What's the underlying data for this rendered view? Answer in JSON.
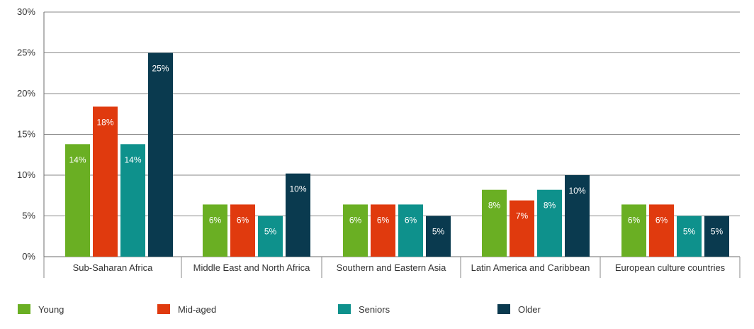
{
  "chart_data": {
    "type": "bar",
    "title": "",
    "xlabel": "",
    "ylabel": "",
    "ylim": [
      0,
      30
    ],
    "yticks": [
      "0%",
      "5%",
      "10%",
      "15%",
      "20%",
      "25%",
      "30%"
    ],
    "ytick_values": [
      0,
      5,
      10,
      15,
      20,
      25,
      30
    ],
    "grid": true,
    "legend_position": "bottom",
    "categories": [
      "Sub-Saharan Africa",
      "Middle East and North Africa",
      "Southern and Eastern Asia",
      "Latin America and Caribbean",
      "European culture countries"
    ],
    "series": [
      {
        "name": "Young",
        "color": "#6aaf23",
        "values": [
          13.8,
          6.4,
          6.4,
          8.2,
          6.4
        ],
        "labels": [
          "14%",
          "6%",
          "6%",
          "8%",
          "6%"
        ]
      },
      {
        "name": "Mid-aged",
        "color": "#e03a0e",
        "values": [
          18.4,
          6.4,
          6.4,
          6.9,
          6.4
        ],
        "labels": [
          "18%",
          "6%",
          "6%",
          "7%",
          "6%"
        ]
      },
      {
        "name": "Seniors",
        "color": "#0e918c",
        "values": [
          13.8,
          5.0,
          6.4,
          8.2,
          5.0
        ],
        "labels": [
          "14%",
          "5%",
          "6%",
          "8%",
          "5%"
        ]
      },
      {
        "name": "Older",
        "color": "#0a3a4f",
        "values": [
          25.0,
          10.2,
          5.0,
          10.0,
          5.0
        ],
        "labels": [
          "25%",
          "10%",
          "5%",
          "10%",
          "5%"
        ]
      }
    ]
  }
}
